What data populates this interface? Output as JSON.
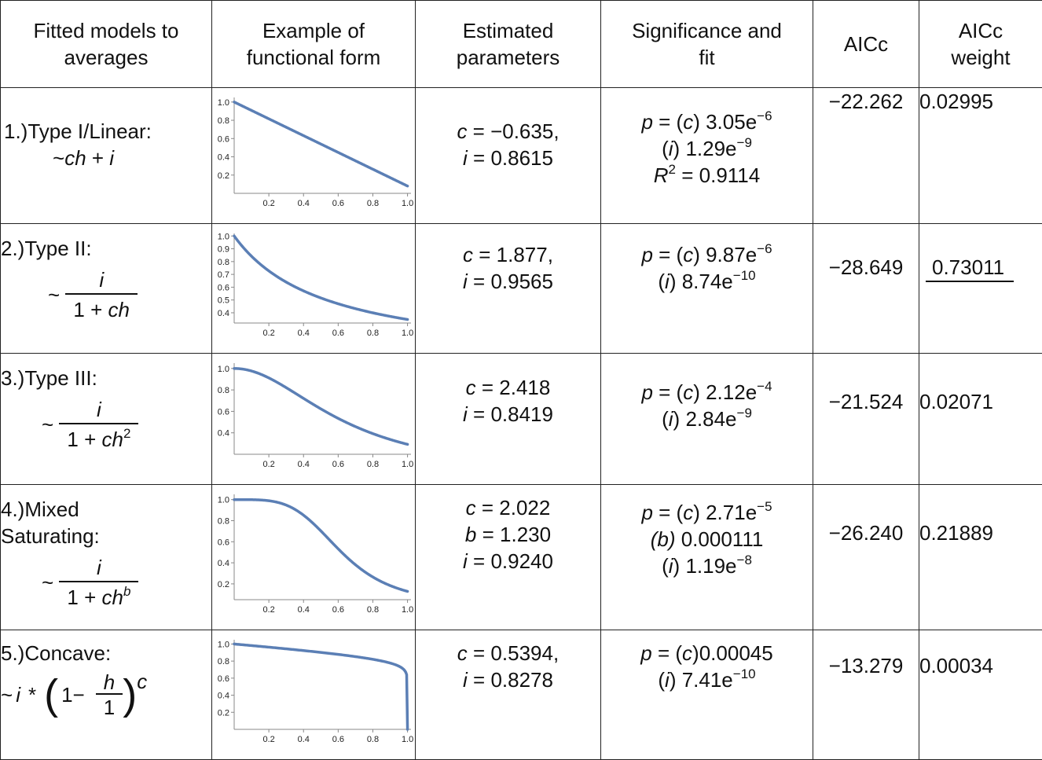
{
  "headers": {
    "model": [
      "Fitted models to",
      "averages"
    ],
    "form": [
      "Example of",
      "functional form"
    ],
    "params": [
      "Estimated",
      "parameters"
    ],
    "fit": [
      "Significance and",
      "fit"
    ],
    "aicc": "AICc",
    "weight": [
      "AICc",
      "weight"
    ]
  },
  "rows": [
    {
      "model_label": "1.)Type I/Linear:",
      "formula": {
        "prefix": "~",
        "a": "ch",
        "op": " + ",
        "b": "i"
      },
      "params": [
        {
          "sym": "c",
          "val": " = −0.635,"
        },
        {
          "sym": "i",
          "val": " = 0.8615"
        }
      ],
      "fit": {
        "p_c": "3.05e",
        "p_c_exp": "−6",
        "p_i": "1.29e",
        "p_i_exp": "−9",
        "r2": " = 0.9114"
      },
      "aicc": "−22.262",
      "weight": "0.02995"
    },
    {
      "model_label": "2.)Type II:",
      "formula": {
        "prefix": "~",
        "num": "i",
        "den_a": "1 + ",
        "den_b": "ch"
      },
      "params": [
        {
          "sym": "c",
          "val": " = 1.877,"
        },
        {
          "sym": "i",
          "val": " = 0.9565"
        }
      ],
      "fit": {
        "p_c": "9.87e",
        "p_c_exp": "−6",
        "p_i": "8.74e",
        "p_i_exp": "−10"
      },
      "aicc": "−28.649",
      "weight": "0.73011"
    },
    {
      "model_label": "3.)Type III:",
      "formula": {
        "prefix": "~",
        "num": "i",
        "den_a": "1 + ",
        "den_b": "ch",
        "den_exp": "2"
      },
      "params": [
        {
          "sym": "c",
          "val": " = 2.418"
        },
        {
          "sym": "i",
          "val": " = 0.8419"
        }
      ],
      "fit": {
        "p_c": "2.12e",
        "p_c_exp": "−4",
        "p_i": "2.84e",
        "p_i_exp": "−9"
      },
      "aicc": "−21.524",
      "weight": "0.02071"
    },
    {
      "model_label": [
        "4.)Mixed",
        "Saturating:"
      ],
      "formula": {
        "prefix": "~",
        "num": "i",
        "den_a": "1 + ",
        "den_b": "ch",
        "den_exp": "b"
      },
      "params": [
        {
          "sym": "c",
          "val": " = 2.022"
        },
        {
          "sym": "b",
          "val": " = 1.230"
        },
        {
          "sym": "i",
          "val": " = 0.9240"
        }
      ],
      "fit": {
        "p_c": "2.71e",
        "p_c_exp": "−5",
        "p_b": " 0.000111",
        "p_i": "1.19e",
        "p_i_exp": "−8"
      },
      "aicc": "−26.240",
      "weight": "0.21889"
    },
    {
      "model_label": "5.)Concave:",
      "formula": {
        "prefix": "~",
        "a": "i",
        "star": "*",
        "one_minus": "1−",
        "num": "h",
        "den": "1",
        "exp": "c"
      },
      "params": [
        {
          "sym": "c",
          "val": " = 0.5394,"
        },
        {
          "sym": "i",
          "val": " = 0.8278"
        }
      ],
      "fit": {
        "p_c": "0.00045",
        "p_i": "7.41e",
        "p_i_exp": "−10"
      },
      "aicc": "−13.279",
      "weight": "0.00034"
    }
  ],
  "fit_labels": {
    "p": "p",
    "eq": " = (",
    "c": "c",
    "close": ") ",
    "close_nosp": ")",
    "i_open": "(",
    "i": "i",
    "b": "b",
    "r": "R",
    "r_exp": "2"
  },
  "chart_data": [
    {
      "type": "line",
      "model": "linear",
      "x_ticks": [
        "0.2",
        "0.4",
        "0.6",
        "0.8",
        "1.0"
      ],
      "y_ticks": [
        "1.0",
        "0.8",
        "0.6",
        "0.4",
        "0.2"
      ],
      "xlim": [
        0,
        1.02
      ],
      "ylim": [
        0,
        1.05
      ],
      "y_range": [
        0.08,
        1.0
      ],
      "series_color": "#5b7fb5"
    },
    {
      "type": "line",
      "model": "type2",
      "x_ticks": [
        "0.2",
        "0.4",
        "0.6",
        "0.8",
        "1.0"
      ],
      "y_ticks": [
        "1.0",
        "0.9",
        "0.8",
        "0.7",
        "0.6",
        "0.5",
        "0.4"
      ],
      "xlim": [
        0,
        1.02
      ],
      "ylim": [
        0.32,
        1.02
      ],
      "series_color": "#5b7fb5"
    },
    {
      "type": "line",
      "model": "type3",
      "x_ticks": [
        "0.2",
        "0.4",
        "0.6",
        "0.8",
        "1.0"
      ],
      "y_ticks": [
        "1.0",
        "0.8",
        "0.6",
        "0.4"
      ],
      "xlim": [
        0,
        1.02
      ],
      "ylim": [
        0.2,
        1.05
      ],
      "series_color": "#5b7fb5"
    },
    {
      "type": "line",
      "model": "mixed",
      "x_ticks": [
        "0.2",
        "0.4",
        "0.6",
        "0.8",
        "1.0"
      ],
      "y_ticks": [
        "1.0",
        "0.8",
        "0.6",
        "0.4",
        "0.2"
      ],
      "xlim": [
        0,
        1.02
      ],
      "ylim": [
        0.05,
        1.05
      ],
      "series_color": "#5b7fb5"
    },
    {
      "type": "line",
      "model": "concave",
      "x_ticks": [
        "0.2",
        "0.4",
        "0.6",
        "0.8",
        "1.0"
      ],
      "y_ticks": [
        "1.0",
        "0.8",
        "0.6",
        "0.4",
        "0.2"
      ],
      "xlim": [
        0,
        1.02
      ],
      "ylim": [
        0,
        1.05
      ],
      "series_color": "#5b7fb5"
    }
  ]
}
